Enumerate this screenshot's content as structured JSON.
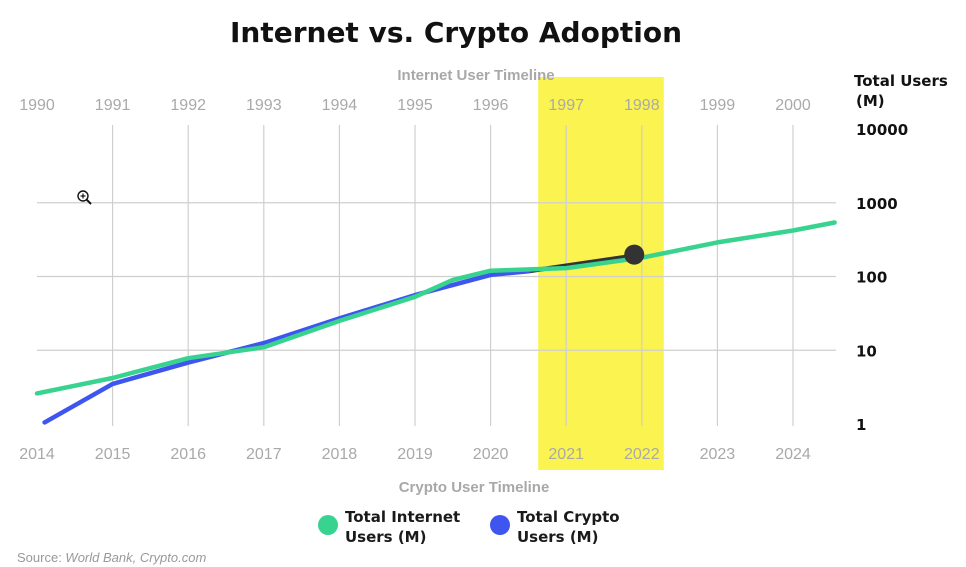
{
  "chart_data": {
    "type": "line",
    "title": "Internet vs. Crypto Adoption",
    "top_axis_label": "Internet User Timeline",
    "bottom_axis_label": "Crypto User Timeline",
    "ylabel_lines": [
      "Total Users",
      "(M)"
    ],
    "yscale": "log",
    "ylim": [
      1,
      10000
    ],
    "y_ticks": [
      "10000",
      "1000",
      "100",
      "10",
      "1"
    ],
    "y_tick_values": [
      10000,
      1000,
      100,
      10,
      1
    ],
    "top_ticks": [
      "1990",
      "1991",
      "1992",
      "1993",
      "1994",
      "1995",
      "1996",
      "1997",
      "1998",
      "1999",
      "2000"
    ],
    "bottom_ticks": [
      "2014",
      "2015",
      "2016",
      "2017",
      "2018",
      "2019",
      "2020",
      "2021",
      "2022",
      "2023",
      "2024"
    ],
    "highlight": {
      "top_range": [
        "1997",
        "1998"
      ],
      "bottom_range": [
        "2021",
        "2022"
      ],
      "color": "#fbf34f"
    },
    "series": [
      {
        "name": "Total Internet Users (M)",
        "color": "#37d38f",
        "axis": "top",
        "x": [
          1990,
          1991,
          1992,
          1993,
          1994,
          1995,
          1995.5,
          1996,
          1997,
          1998,
          1999,
          2000,
          2000.55
        ],
        "values": [
          2.6,
          4.2,
          7.8,
          11,
          25,
          53,
          90,
          120,
          130,
          180,
          290,
          420,
          540
        ]
      },
      {
        "name": "Total Crypto Users (M)",
        "color": "#3f55f0",
        "axis": "bottom",
        "x": [
          2014.1,
          2015,
          2016,
          2017,
          2018,
          2019,
          2020,
          2020.5
        ],
        "values": [
          1.05,
          3.5,
          6.8,
          12.5,
          27,
          56,
          105,
          118
        ]
      },
      {
        "name": "",
        "color": "#333333",
        "axis": "bottom",
        "x": [
          2020.5,
          2022
        ],
        "values": [
          118,
          198
        ]
      }
    ],
    "marker": {
      "x": 2021.9,
      "value": 198,
      "color": "#333333"
    },
    "legend": {
      "placement": "bottom-center",
      "entries": [
        {
          "lines": [
            "Total Internet",
            "Users (M)"
          ],
          "color": "#37d38f"
        },
        {
          "lines": [
            "Total Crypto",
            "Users (M)"
          ],
          "color": "#3f55f0"
        }
      ]
    },
    "grid": true
  },
  "source": {
    "prefix": "Source: ",
    "text": "World Bank, Crypto.com"
  },
  "cursor_icon": "zoom-in-icon"
}
